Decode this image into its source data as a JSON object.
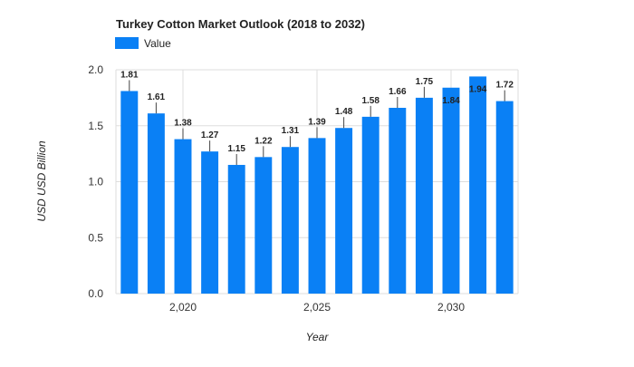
{
  "chart_data": {
    "type": "bar",
    "title": "Turkey Cotton Market Outlook (2018 to 2032)",
    "legend": {
      "label": "Value",
      "position": "top-left"
    },
    "xlabel": "Year",
    "ylabel": "USD USD Billion",
    "x": [
      2018,
      2019,
      2020,
      2021,
      2022,
      2023,
      2024,
      2025,
      2026,
      2027,
      2028,
      2029,
      2030,
      2031,
      2032
    ],
    "values": [
      1.81,
      1.61,
      1.38,
      1.27,
      1.15,
      1.22,
      1.31,
      1.39,
      1.48,
      1.58,
      1.66,
      1.75,
      1.84,
      1.94,
      1.72
    ],
    "data_labels": [
      "1.81",
      "1.61",
      "1.38",
      "1.27",
      "1.15",
      "1.22",
      "1.31",
      "1.39",
      "1.48",
      "1.58",
      "1.66",
      "1.75",
      "1.84",
      "1.94",
      "1.72"
    ],
    "ylim": [
      0,
      2.0
    ],
    "yticks": [
      0,
      0.5,
      1.0,
      1.5,
      2.0
    ],
    "ytick_labels": [
      "0.0",
      "0.5",
      "1.0",
      "1.5",
      "2.0"
    ],
    "xticks": [
      2020,
      2025,
      2030
    ],
    "xtick_labels": [
      "2,020",
      "2,025",
      "2,030"
    ],
    "grid": true,
    "bar_color": "#0a80f5"
  }
}
